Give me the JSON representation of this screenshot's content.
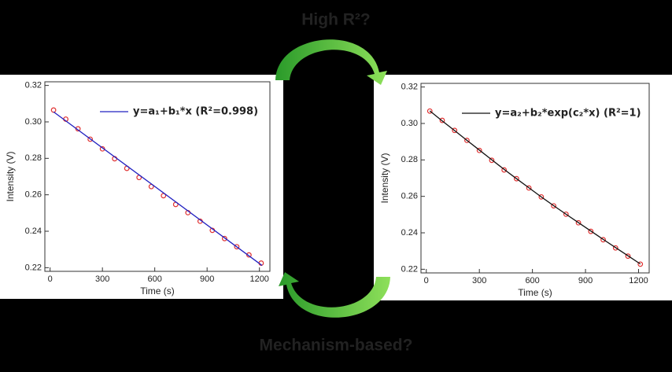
{
  "annotations": [
    {
      "text": "High R²?",
      "color": "#e8141c"
    },
    {
      "text": "Mechanism-based?",
      "color": "#1e8cf0"
    }
  ],
  "chart_data": [
    {
      "type": "scatter",
      "xlabel": "Time (s)",
      "ylabel": "Intensity (V)",
      "x": [
        20,
        90,
        160,
        230,
        300,
        370,
        440,
        510,
        580,
        650,
        720,
        790,
        860,
        930,
        1000,
        1070,
        1140,
        1210
      ],
      "series": [
        {
          "color": "#e03030",
          "values": [
            0.3065,
            0.3015,
            0.2962,
            0.2905,
            0.2852,
            0.2798,
            0.2745,
            0.2695,
            0.2645,
            0.2595,
            0.2547,
            0.2502,
            0.2455,
            0.2405,
            0.236,
            0.2315,
            0.227,
            0.2225
          ]
        },
        {
          "name": "y=a₁+b₁*x (R²=0.998)",
          "color": "#2020c0",
          "legend_color": "#1f1fb4",
          "line": true,
          "x": [
            20,
            1215
          ],
          "values": [
            0.3055,
            0.2212
          ]
        }
      ],
      "xlim": [
        -30,
        1260
      ],
      "ylim": [
        0.218,
        0.322
      ],
      "xticks": [
        0,
        300,
        600,
        900,
        1200
      ],
      "yticks": [
        0.22,
        0.24,
        0.26,
        0.28,
        {
          "value": 0.3,
          "label": "0.30"
        },
        0.32
      ],
      "grid": false,
      "legend": "upper right"
    },
    {
      "type": "scatter",
      "xlabel": "Time (s)",
      "ylabel": "Intensity (V)",
      "x": [
        20,
        90,
        160,
        230,
        300,
        370,
        440,
        510,
        580,
        650,
        720,
        790,
        860,
        930,
        1000,
        1070,
        1140,
        1210
      ],
      "series": [
        {
          "color": "#e03030",
          "values": [
            0.3068,
            0.3017,
            0.2962,
            0.2907,
            0.2852,
            0.2798,
            0.2745,
            0.2697,
            0.2646,
            0.2597,
            0.2548,
            0.2502,
            0.2455,
            0.2408,
            0.2362,
            0.2317,
            0.2272,
            0.2228
          ]
        },
        {
          "name": "y=a₂+b₂*exp(c₂*x) (R²=1)",
          "color": "#111111",
          "legend_color": "#e8141c",
          "line": true,
          "x": [
            20,
            90,
            160,
            230,
            300,
            370,
            440,
            510,
            580,
            650,
            720,
            790,
            860,
            930,
            1000,
            1070,
            1140,
            1210
          ],
          "values": [
            0.3069,
            0.3014,
            0.2961,
            0.2907,
            0.2854,
            0.2801,
            0.2748,
            0.2697,
            0.2647,
            0.2597,
            0.2549,
            0.2502,
            0.2456,
            0.241,
            0.2364,
            0.2319,
            0.2274,
            0.2229
          ]
        }
      ],
      "xlim": [
        -30,
        1260
      ],
      "ylim": [
        0.218,
        0.322
      ],
      "xticks": [
        0,
        300,
        600,
        900,
        1200
      ],
      "yticks": [
        0.22,
        0.24,
        0.26,
        0.28,
        {
          "value": 0.3,
          "label": "0.30"
        },
        0.32
      ],
      "grid": false,
      "legend": "upper right"
    }
  ]
}
